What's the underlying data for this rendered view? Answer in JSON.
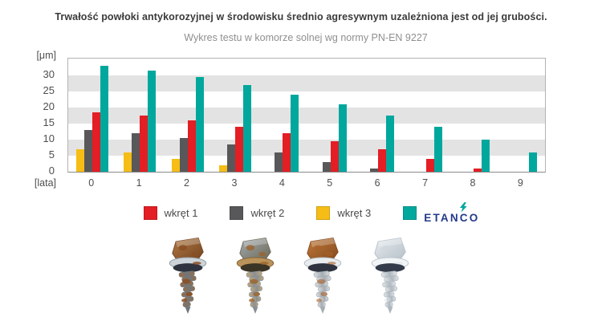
{
  "title": "Trwałość powłoki antykorozyjnej w środowisku średnio agresywnym uzależniona jest od jej grubości.",
  "subtitle": "Wykres testu w komorze solnej wg normy PN-EN 9227",
  "axes": {
    "y_unit": "[μm]",
    "x_unit": "[lata]",
    "y_ticks": [
      0,
      5,
      10,
      15,
      20,
      25,
      30
    ],
    "x_labels": [
      "0",
      "1",
      "2",
      "3",
      "4",
      "5",
      "6",
      "7",
      "8",
      "9"
    ]
  },
  "chart_data": {
    "type": "bar",
    "title": "Trwałość powłoki antykorozyjnej w środowisku średnio agresywnym uzależniona jest od jej grubości.",
    "subtitle": "Wykres testu w komorze solnej wg normy PN-EN 9227",
    "xlabel": "[lata]",
    "ylabel": "[μm]",
    "categories": [
      0,
      1,
      2,
      3,
      4,
      5,
      6,
      7,
      8,
      9
    ],
    "series": [
      {
        "name": "wkręt 3",
        "color": "#f5bd16",
        "values": [
          7,
          6,
          4,
          2,
          0,
          0,
          0,
          0,
          0,
          0
        ]
      },
      {
        "name": "wkręt 2",
        "color": "#58585a",
        "values": [
          13,
          12,
          10.5,
          8.5,
          6,
          3,
          1,
          0,
          0,
          0
        ]
      },
      {
        "name": "wkręt 1",
        "color": "#e31e24",
        "values": [
          18.5,
          17.5,
          16,
          14,
          12,
          9.5,
          7,
          4,
          1,
          0
        ]
      },
      {
        "name": "ETANCO",
        "color": "#00a79d",
        "values": [
          33,
          31.5,
          29.5,
          27,
          24,
          21,
          17.5,
          14,
          10,
          6
        ]
      }
    ],
    "ylim": [
      0,
      35
    ],
    "grid_stripes_um": [
      [
        5,
        10
      ],
      [
        15,
        20
      ],
      [
        25,
        30
      ]
    ],
    "stripe_color": "#e3e3e3",
    "legend_position": "bottom"
  },
  "legend": {
    "items": [
      {
        "label": "wkręt 1",
        "color": "#e31e24"
      },
      {
        "label": "wkręt 2",
        "color": "#58585a"
      },
      {
        "label": "wkręt 3",
        "color": "#f5bd16"
      },
      {
        "label": "ETANCO",
        "color": "#00a79d",
        "logo": true
      }
    ]
  },
  "brand": {
    "name": "ETANCO",
    "navy": "#233a8a",
    "teal": "#00a79d"
  },
  "images": {
    "screws": [
      "screw-heavily-corroded-photo",
      "screw-corroded-photo",
      "screw-partially-corroded-photo",
      "screw-intact-photo"
    ]
  }
}
